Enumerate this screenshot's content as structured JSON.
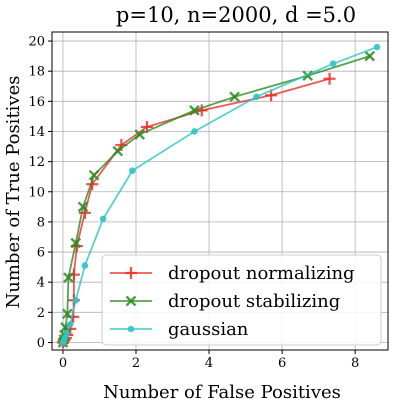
{
  "chart_data": {
    "type": "line",
    "title": "p=10, n=2000, d =5.0",
    "xlabel": "Number of False Positives",
    "ylabel": "Number of True Positives",
    "xlim": [
      -0.3,
      8.9
    ],
    "ylim": [
      -0.5,
      20.6
    ],
    "xticks": [
      0,
      2,
      4,
      6,
      8
    ],
    "yticks": [
      0,
      2,
      4,
      6,
      8,
      10,
      12,
      14,
      16,
      18,
      20
    ],
    "grid": true,
    "legend_position": "lower-right",
    "series": [
      {
        "name": "dropout normalizing",
        "color": "#e8312c",
        "marker": "plus",
        "points": [
          [
            0.0,
            0.0
          ],
          [
            0.02,
            0.1
          ],
          [
            0.05,
            0.2
          ],
          [
            0.08,
            0.3
          ],
          [
            0.12,
            0.5
          ],
          [
            0.2,
            0.9
          ],
          [
            0.28,
            1.7
          ],
          [
            0.3,
            2.8
          ],
          [
            0.3,
            4.5
          ],
          [
            0.38,
            6.4
          ],
          [
            0.6,
            8.6
          ],
          [
            0.8,
            10.5
          ],
          [
            1.6,
            13.1
          ],
          [
            2.3,
            14.3
          ],
          [
            3.8,
            15.4
          ],
          [
            5.7,
            16.4
          ],
          [
            7.3,
            17.5
          ]
        ]
      },
      {
        "name": "dropout stabilizing",
        "color": "#2e8b22",
        "marker": "x",
        "points": [
          [
            0.0,
            0.0
          ],
          [
            0.02,
            0.2
          ],
          [
            0.04,
            0.5
          ],
          [
            0.07,
            1.0
          ],
          [
            0.12,
            1.9
          ],
          [
            0.15,
            4.3
          ],
          [
            0.35,
            6.6
          ],
          [
            0.55,
            9.0
          ],
          [
            0.85,
            11.1
          ],
          [
            1.5,
            12.7
          ],
          [
            2.1,
            13.8
          ],
          [
            3.6,
            15.4
          ],
          [
            4.7,
            16.3
          ],
          [
            6.7,
            17.7
          ],
          [
            8.4,
            19.0
          ]
        ]
      },
      {
        "name": "gaussian",
        "color": "#2ec4c7",
        "marker": "circle",
        "points": [
          [
            0.0,
            0.0
          ],
          [
            0.02,
            0.1
          ],
          [
            0.05,
            0.3
          ],
          [
            0.1,
            0.6
          ],
          [
            0.2,
            1.2
          ],
          [
            0.35,
            2.8
          ],
          [
            0.6,
            5.1
          ],
          [
            1.1,
            8.2
          ],
          [
            1.9,
            11.4
          ],
          [
            3.6,
            14.0
          ],
          [
            5.3,
            16.3
          ],
          [
            7.4,
            18.5
          ],
          [
            8.6,
            19.6
          ]
        ]
      }
    ]
  }
}
